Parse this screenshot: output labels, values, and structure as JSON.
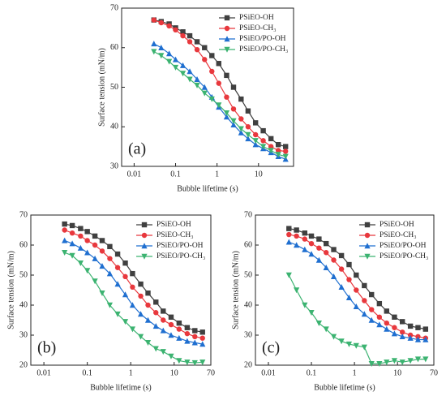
{
  "chart_data": [
    {
      "type": "line",
      "annotation": "(a)",
      "xlabel": "Bubble lifetime (s)",
      "ylabel": "Surface tension (mN/m)",
      "xscale": "log",
      "xlim": [
        0.005,
        70
      ],
      "xticks": [
        0.01,
        0.1,
        1,
        10
      ],
      "ylim": [
        30,
        70
      ],
      "yticks": [
        30,
        40,
        50,
        60,
        70
      ],
      "legend": "upper right",
      "x": [
        0.03,
        0.045,
        0.07,
        0.1,
        0.15,
        0.22,
        0.33,
        0.5,
        0.75,
        1.1,
        1.7,
        2.5,
        3.8,
        5.6,
        8.5,
        13,
        20,
        30,
        45
      ],
      "series": [
        {
          "name": "PSiEO-OH",
          "color": "#404040",
          "marker": "square",
          "values": [
            67,
            66.6,
            66,
            65,
            64,
            63,
            61.5,
            60,
            58,
            56,
            53,
            50,
            47,
            44,
            41,
            39,
            37,
            35.5,
            35
          ]
        },
        {
          "name": "PSiEO-CH₃",
          "color": "#e8383d",
          "marker": "circle",
          "values": [
            67,
            66.3,
            65.5,
            64.5,
            63,
            61.5,
            59.5,
            57,
            54,
            51,
            47.5,
            44.5,
            42,
            40,
            38,
            36.5,
            35,
            34,
            33.8
          ]
        },
        {
          "name": "PSiEO/PO-OH",
          "color": "#1f6fd0",
          "marker": "triangle-up",
          "values": [
            61,
            60,
            58.5,
            57,
            55.5,
            54,
            52,
            50,
            47.5,
            45,
            42.5,
            40.5,
            38.5,
            37,
            35.5,
            34.5,
            33.5,
            32.5,
            31.8
          ]
        },
        {
          "name": "PSiEO/PO-CH₃",
          "color": "#3cb371",
          "marker": "triangle-down",
          "values": [
            59,
            58,
            56.5,
            55,
            53.5,
            52,
            50.5,
            48.5,
            47,
            45.5,
            43.5,
            41.5,
            39.5,
            38,
            36.5,
            35,
            34,
            33,
            32.5
          ]
        }
      ]
    },
    {
      "type": "line",
      "annotation": "(b)",
      "xlabel": "Bubble lifetime (s)",
      "ylabel": "Surface tension (mN/m)",
      "xscale": "log",
      "xlim": [
        0.005,
        70
      ],
      "xticks": [
        0.01,
        0.1,
        1,
        10,
        70
      ],
      "ylim": [
        20,
        70
      ],
      "yticks": [
        20,
        30,
        40,
        50,
        60,
        70
      ],
      "legend": "upper right",
      "x": [
        0.03,
        0.045,
        0.07,
        0.1,
        0.15,
        0.22,
        0.33,
        0.5,
        0.75,
        1.1,
        1.7,
        2.5,
        3.8,
        5.6,
        8.5,
        13,
        20,
        30,
        45
      ],
      "series": [
        {
          "name": "PSiEO-OH",
          "color": "#404040",
          "marker": "square",
          "values": [
            67,
            66.5,
            65.5,
            64.5,
            63,
            61.5,
            59.5,
            57,
            54,
            50.5,
            47,
            44,
            41,
            38,
            36,
            34,
            32.5,
            31.5,
            31
          ]
        },
        {
          "name": "PSiEO-CH₃",
          "color": "#e8383d",
          "marker": "circle",
          "values": [
            65,
            64,
            63,
            61.5,
            60,
            58,
            55.5,
            52.5,
            49.5,
            46,
            43,
            40,
            37.5,
            35,
            33.5,
            32,
            30.5,
            29.5,
            29
          ]
        },
        {
          "name": "PSiEO/PO-OH",
          "color": "#1f6fd0",
          "marker": "triangle-up",
          "values": [
            61.5,
            60.5,
            59,
            57.5,
            55.5,
            53,
            50.5,
            47,
            43.5,
            40,
            37,
            35,
            33,
            31.5,
            30,
            29,
            28,
            27.5,
            27
          ]
        },
        {
          "name": "PSiEO/PO-CH₃",
          "color": "#3cb371",
          "marker": "triangle-down",
          "values": [
            57.5,
            56.5,
            54,
            51.5,
            48,
            44,
            40,
            37,
            34.5,
            32,
            29.5,
            27.5,
            25.5,
            24.5,
            23,
            21.5,
            21,
            20.8,
            21
          ]
        }
      ]
    },
    {
      "type": "line",
      "annotation": "(c)",
      "xlabel": "Bubble lifetime (s)",
      "ylabel": "Surface tension (mN/m)",
      "xscale": "log",
      "xlim": [
        0.005,
        70
      ],
      "xticks": [
        0.01,
        0.1,
        1,
        10,
        70
      ],
      "ylim": [
        20,
        70
      ],
      "yticks": [
        20,
        30,
        40,
        50,
        60,
        70
      ],
      "legend": "upper right",
      "x": [
        0.03,
        0.045,
        0.07,
        0.1,
        0.15,
        0.22,
        0.33,
        0.5,
        0.75,
        1.1,
        1.7,
        2.5,
        3.8,
        5.6,
        8.5,
        13,
        20,
        30,
        45
      ],
      "series": [
        {
          "name": "PSiEO-OH",
          "color": "#404040",
          "marker": "square",
          "values": [
            65.5,
            65,
            64,
            63,
            62,
            60.5,
            58.5,
            56.5,
            53.5,
            50,
            46.5,
            43.5,
            40.5,
            38,
            36,
            34.5,
            33,
            32.5,
            32
          ]
        },
        {
          "name": "PSiEO-CH₃",
          "color": "#e8383d",
          "marker": "circle",
          "values": [
            63.5,
            63,
            62,
            60.5,
            59,
            57.5,
            55,
            52,
            48.5,
            45,
            41.5,
            38.5,
            36,
            34,
            32.5,
            31,
            30,
            29.5,
            29
          ]
        },
        {
          "name": "PSiEO/PO-OH",
          "color": "#1f6fd0",
          "marker": "triangle-up",
          "values": [
            61,
            60,
            58.5,
            57,
            55,
            52.5,
            49.5,
            46,
            42.5,
            39.5,
            37,
            35,
            33.5,
            32,
            30.5,
            29.5,
            29,
            28.5,
            28.5
          ]
        },
        {
          "name": "PSiEO/PO-CH₃",
          "color": "#3cb371",
          "marker": "triangle-down",
          "values": [
            50,
            45,
            40,
            37.5,
            34,
            32,
            29.5,
            28,
            27,
            26.5,
            26,
            20.5,
            20.5,
            21,
            21.5,
            21,
            21.5,
            22,
            22
          ]
        }
      ]
    }
  ]
}
